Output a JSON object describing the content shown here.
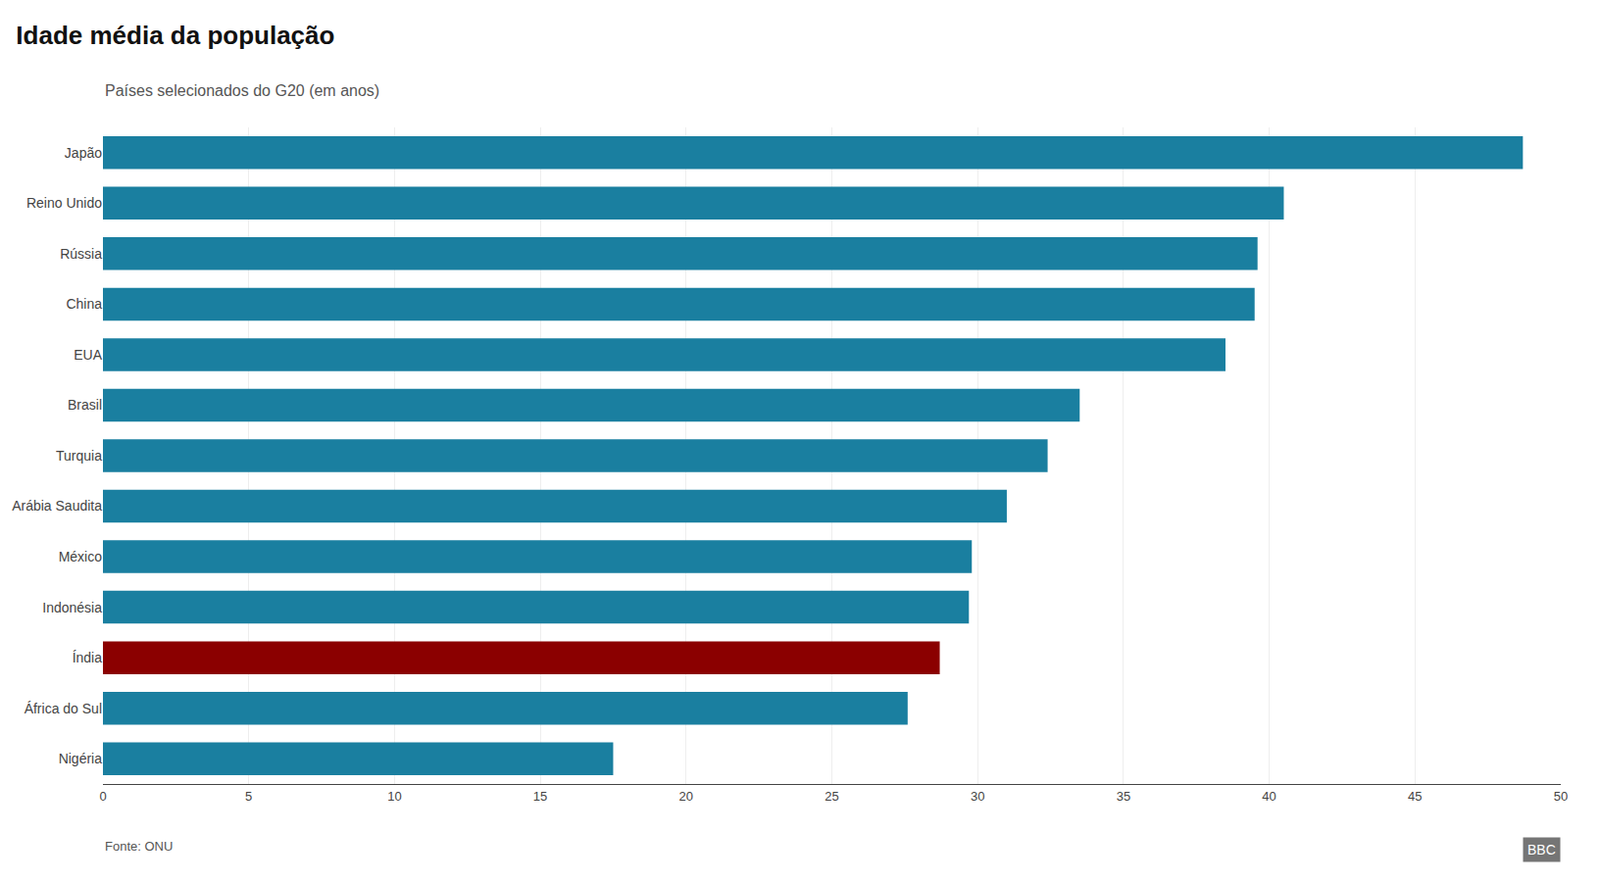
{
  "chart_data": {
    "type": "bar",
    "orientation": "horizontal",
    "title": "Idade média da população",
    "subtitle": "Países selecionados do G20 (em anos)",
    "annotations": [
      "Fonte: ONU",
      "BBC"
    ],
    "categories": [
      "Nigéria",
      "África do Sul",
      "Índia",
      "Indonésia",
      "México",
      "Arábia Saudita",
      "Turquia",
      "Brasil",
      "EUA",
      "China",
      "Rússia",
      "Reino Unido",
      "Japão"
    ],
    "values": [
      17.5,
      27.6,
      28.7,
      29.7,
      29.8,
      31.0,
      32.4,
      33.5,
      38.5,
      39.5,
      39.6,
      40.5,
      48.7
    ],
    "colors": [
      "#1a7fa0",
      "#1a7fa0",
      "#8b0000",
      "#1a7fa0",
      "#1a7fa0",
      "#1a7fa0",
      "#1a7fa0",
      "#1a7fa0",
      "#1a7fa0",
      "#1a7fa0",
      "#1a7fa0",
      "#1a7fa0",
      "#1a7fa0"
    ],
    "xlim": [
      0,
      50
    ],
    "xticks": [
      0,
      5,
      10,
      15,
      20,
      25,
      30,
      35,
      40,
      45,
      50
    ],
    "grid": true
  }
}
